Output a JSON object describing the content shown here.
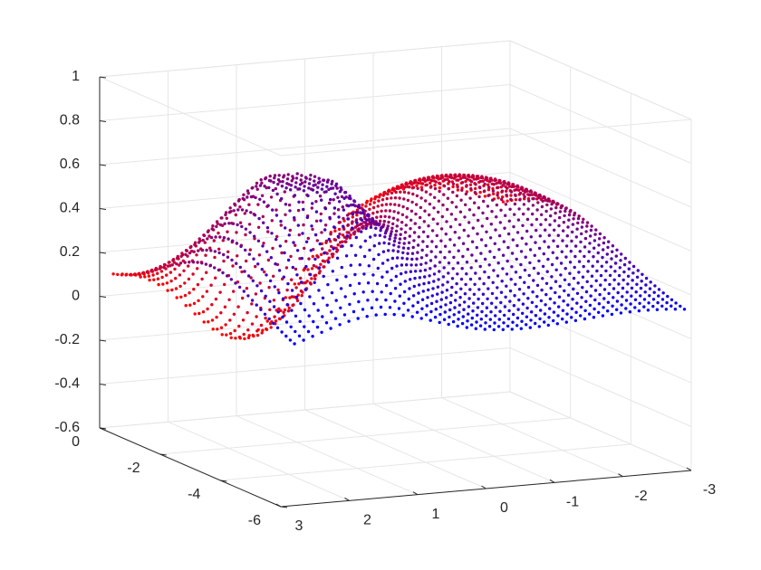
{
  "chart_data": {
    "type": "scatter",
    "subtype": "scatter3d",
    "title": "",
    "xlabel": "",
    "ylabel": "",
    "zlabel": "",
    "grid": true,
    "box": true,
    "colors": {
      "start": "#0000ff",
      "end": "#ff0000",
      "grid": "#e6e6e6",
      "axis": "#262626"
    },
    "xlim": [
      -3,
      3
    ],
    "ylim": [
      -6,
      0
    ],
    "zlim": [
      -0.6,
      1
    ],
    "x_ticks": [
      {
        "value": -3,
        "label": "-3"
      },
      {
        "value": -2,
        "label": "-2"
      },
      {
        "value": -1,
        "label": "-1"
      },
      {
        "value": 0,
        "label": "0"
      },
      {
        "value": 1,
        "label": "1"
      },
      {
        "value": 2,
        "label": "2"
      },
      {
        "value": 3,
        "label": "3"
      }
    ],
    "y_ticks": [
      {
        "value": 0,
        "label": "0"
      },
      {
        "value": -2,
        "label": "-2"
      },
      {
        "value": -4,
        "label": "-4"
      },
      {
        "value": -6,
        "label": "-6"
      }
    ],
    "z_ticks": [
      {
        "value": 1,
        "label": "1"
      },
      {
        "value": 0.8,
        "label": "0.8"
      },
      {
        "value": 0.6,
        "label": "0.6"
      },
      {
        "value": 0.4,
        "label": "0.4"
      },
      {
        "value": 0.2,
        "label": "0.2"
      },
      {
        "value": 0,
        "label": "0"
      },
      {
        "value": -0.2,
        "label": "-0.2"
      },
      {
        "value": -0.4,
        "label": "-0.4"
      },
      {
        "value": -0.6,
        "label": "-0.6"
      }
    ],
    "series": [
      {
        "points": "3D point cloud surface; ~2000 points; colour interpolates from blue (#0000ff) at y≈-6 to red (#ff0000) at y≈0",
        "x_range": [
          -2.9,
          2.8
        ],
        "y_range": [
          -6,
          0
        ],
        "z_range": [
          -0.45,
          0.68
        ]
      }
    ]
  }
}
